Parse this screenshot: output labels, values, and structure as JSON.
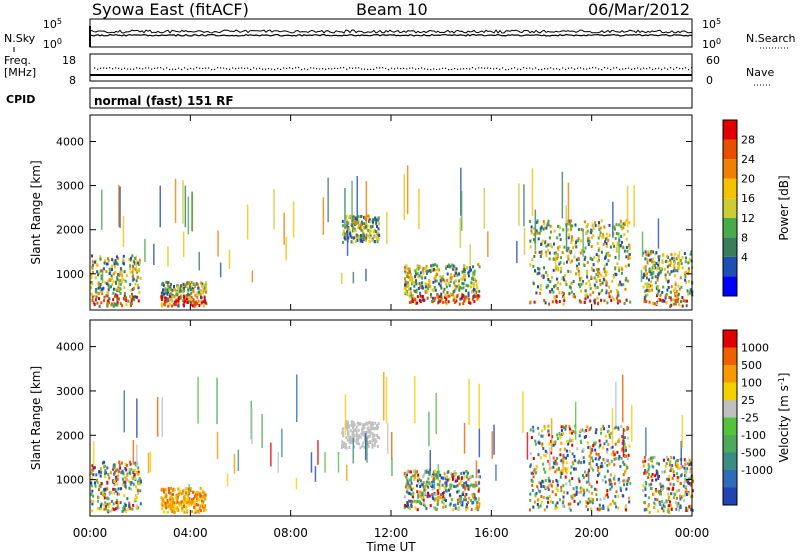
{
  "header": {
    "station": "Syowa East (fitACF)",
    "beam": "Beam 10",
    "date": "06/Mar/2012"
  },
  "status_panel": {
    "nsky_label": "N.Sky",
    "nsearch_label": "N.Search",
    "freq_label_1": "Freq.",
    "freq_label_2": "[MHz]",
    "nave_label": "Nave",
    "cpid_label": "CPID",
    "noise_ticks": [
      "10^5",
      "10^0"
    ],
    "freq_ticks": [
      "18",
      "8"
    ],
    "nave_ticks": [
      "60",
      "0"
    ],
    "cpid_text": "normal (fast) 151 RF"
  },
  "colorbars": {
    "power": {
      "label": "Power [dB]",
      "ticks": [
        "28",
        "24",
        "20",
        "16",
        "12",
        "8",
        "4"
      ],
      "colors": [
        "#0000ff",
        "#1f4fb4",
        "#3a7d5c",
        "#4aaa4a",
        "#cccc33",
        "#f5c200",
        "#f08000",
        "#e85000",
        "#e00000"
      ]
    },
    "velocity": {
      "label": "Velocity [m s^-1]",
      "ticks": [
        "1000",
        "500",
        "100",
        "25",
        "-25",
        "-100",
        "-500",
        "-1000"
      ],
      "colors": [
        "#2044b4",
        "#2f6cb8",
        "#3a8c84",
        "#4caa5a",
        "#55c23c",
        "#c0c0c0",
        "#f5d000",
        "#f59a00",
        "#f06000",
        "#e00000"
      ]
    }
  },
  "chart_data": [
    {
      "type": "heatmap",
      "title": "Power",
      "ylabel": "Slant Range [km]",
      "ylim": [
        180,
        4600
      ],
      "yticks": [
        1000,
        2000,
        3000,
        4000
      ],
      "xlim": [
        "00:00",
        "24:00"
      ],
      "xticks": [
        "00:00",
        "04:00",
        "08:00",
        "12:00",
        "16:00",
        "20:00",
        "00:00"
      ],
      "colorbar": "Power [dB]",
      "echo_regions": [
        {
          "t": [
            0.0,
            2.0
          ],
          "range_km": [
            250,
            1400
          ],
          "level": "8-24"
        },
        {
          "t": [
            2.8,
            4.6
          ],
          "range_km": [
            250,
            800
          ],
          "level": "12-28"
        },
        {
          "t": [
            10.0,
            11.5
          ],
          "range_km": [
            1700,
            2300
          ],
          "level": "4-12"
        },
        {
          "t": [
            12.5,
            15.5
          ],
          "range_km": [
            300,
            1200
          ],
          "level": "4-16"
        },
        {
          "t": [
            17.5,
            21.5
          ],
          "range_km": [
            300,
            2200
          ],
          "level": "4-28"
        },
        {
          "t": [
            22.0,
            24.0
          ],
          "range_km": [
            250,
            1500
          ],
          "level": "4-24"
        }
      ]
    },
    {
      "type": "heatmap",
      "title": "Velocity",
      "ylabel": "Slant Range [km]",
      "ylim": [
        180,
        4600
      ],
      "yticks": [
        1000,
        2000,
        3000,
        4000
      ],
      "xlim": [
        "00:00",
        "24:00"
      ],
      "xticks": [
        "00:00",
        "04:00",
        "08:00",
        "12:00",
        "16:00",
        "20:00",
        "00:00"
      ],
      "xlabel": "Time UT",
      "colorbar": "Velocity [m s^-1]",
      "echo_regions": [
        {
          "t": [
            0.0,
            2.0
          ],
          "range_km": [
            250,
            1400
          ],
          "level": "-500 to 1000"
        },
        {
          "t": [
            2.8,
            4.6
          ],
          "range_km": [
            250,
            800
          ],
          "level": "-500 to -25"
        },
        {
          "t": [
            10.0,
            11.5
          ],
          "range_km": [
            1700,
            2300
          ],
          "level": "-25 to 25"
        },
        {
          "t": [
            12.5,
            15.5
          ],
          "range_km": [
            300,
            1200
          ],
          "level": "100 to 1000"
        },
        {
          "t": [
            17.5,
            21.5
          ],
          "range_km": [
            300,
            2200
          ],
          "level": "-100 to 500"
        },
        {
          "t": [
            22.0,
            24.0
          ],
          "range_km": [
            250,
            1500
          ],
          "level": "-1000 to 500"
        }
      ]
    }
  ]
}
